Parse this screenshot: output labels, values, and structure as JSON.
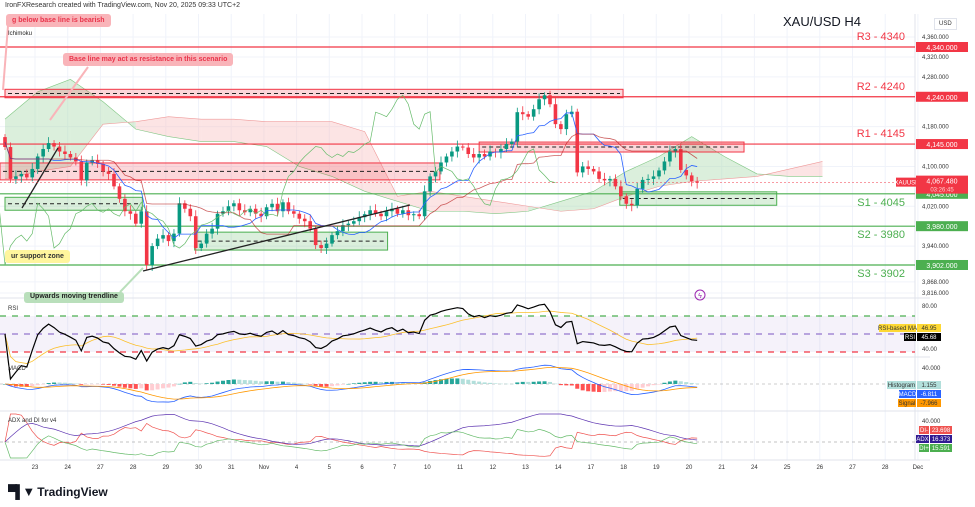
{
  "header": {
    "attribution": "IronFXResearch created with TradingView.com, Nov 20, 2025 09:33 UTC+2",
    "symbol_title": "XAU/USD H4",
    "currency": "USD",
    "indicator": "Ichimoku"
  },
  "annotations": {
    "bearish": "g below base line is bearish",
    "resistance": "Base line may act as resistance in this scenario",
    "support": "ur support zone",
    "trendline": "Upwards moving trendline"
  },
  "footer": {
    "brand": "TradingView"
  },
  "colors": {
    "up": "#089981",
    "down": "#f23645",
    "resistance": "#f23645",
    "support": "#4caf50",
    "tenkan": "#2962ff",
    "kijun": "#b71c1c",
    "cloud_up": "#a5d6a7",
    "cloud_down": "#f8bbbb",
    "rsi": "#000000",
    "rsi_ma": "#fbc02d",
    "macd": "#2962ff",
    "signal": "#ff9800"
  },
  "chart_data": {
    "type": "candlestick",
    "symbol": "XAUUSD",
    "timeframe": "H4",
    "ylim": [
      3816,
      4360
    ],
    "y_ticks": [
      "4,360.000",
      "4,320.000",
      "4,280.000",
      "4,180.000",
      "4,100.000",
      "4,020.000",
      "3,940.000",
      "3,868.000",
      "3,816.000"
    ],
    "y_tick_values": [
      4360,
      4320,
      4280,
      4180,
      4100,
      4020,
      3940,
      3868,
      3816
    ],
    "x_ticks": [
      "23",
      "24",
      "27",
      "28",
      "29",
      "30",
      "31",
      "Nov",
      "4",
      "5",
      "6",
      "7",
      "10",
      "11",
      "12",
      "13",
      "14",
      "17",
      "18",
      "19",
      "20",
      "21",
      "24",
      "25",
      "26",
      "27",
      "28",
      "Dec"
    ],
    "closes": [
      4139,
      4075,
      4080,
      4085,
      4078,
      4095,
      4120,
      4135,
      4147,
      4140,
      4130,
      4125,
      4118,
      4110,
      4072,
      4108,
      4112,
      4105,
      4090,
      4085,
      4060,
      4035,
      4010,
      4005,
      3985,
      4010,
      3902,
      3940,
      3955,
      3962,
      3950,
      3965,
      4026,
      4015,
      4000,
      3936,
      3945,
      3965,
      3975,
      4005,
      4010,
      4020,
      4026,
      4012,
      4008,
      4015,
      4005,
      4000,
      4018,
      4025,
      4010,
      4028,
      4010,
      4005,
      3995,
      3990,
      3975,
      3942,
      3936,
      3945,
      3962,
      3970,
      3982,
      3985,
      3990,
      3998,
      4004,
      4012,
      4005,
      4000,
      4010,
      4015,
      4005,
      4012,
      4002,
      4004,
      4000,
      4050,
      4080,
      4090,
      4108,
      4120,
      4130,
      4140,
      4138,
      4125,
      4118,
      4125,
      4120,
      4130,
      4128,
      4135,
      4145,
      4150,
      4209,
      4205,
      4200,
      4215,
      4235,
      4243,
      4225,
      4185,
      4175,
      4205,
      4210,
      4088,
      4100,
      4095,
      4090,
      4075,
      4072,
      4075,
      4060,
      4040,
      4025,
      4022,
      4055,
      4073,
      4075,
      4080,
      4092,
      4110,
      4130,
      4135,
      4093,
      4082,
      4070,
      4067.48
    ],
    "cloud_daily_span_a": [
      4195,
      4250,
      4275,
      4230,
      4175,
      4160,
      4150,
      4150,
      4140,
      4100,
      4080,
      4050,
      4030,
      4010,
      4010,
      4005,
      4010,
      4030,
      4050,
      4090,
      4120,
      4160,
      4120,
      4085,
      4080,
      4080
    ],
    "cloud_daily_span_b": [
      4075,
      4090,
      4100,
      4185,
      4190,
      4200,
      4195,
      4195,
      4190,
      4190,
      4190,
      4170,
      4040,
      4050,
      4040,
      4030,
      4020,
      4010,
      4015,
      4040,
      4060,
      4070,
      4075,
      4080,
      4095,
      4110
    ],
    "levels": [
      {
        "label": "R3 - 4340",
        "price": 4340,
        "axis": "4,340.000",
        "kind": "resistance"
      },
      {
        "label": "R2 - 4240",
        "price": 4240,
        "axis": "4,240.000",
        "kind": "resistance"
      },
      {
        "label": "R1 - 4145",
        "price": 4145,
        "axis": "4,145.000",
        "kind": "resistance"
      },
      {
        "label": "S1 - 4045",
        "price": 4045,
        "axis": "4,045.000",
        "kind": "support"
      },
      {
        "label": "S2 - 3980",
        "price": 3980,
        "axis": "3,980.000",
        "kind": "support"
      },
      {
        "label": "S3 - 3902",
        "price": 3902,
        "axis": "3,902.000",
        "kind": "support"
      }
    ],
    "zones": [
      {
        "kind": "resistance",
        "from_day": 0,
        "to_day": 18.9,
        "top": 4255,
        "bottom": 4238
      },
      {
        "kind": "resistance",
        "from_day": -0.2,
        "to_day": 13.3,
        "top": 4107,
        "bottom": 4073
      },
      {
        "kind": "resistance",
        "from_day": 14.5,
        "to_day": 22.6,
        "top": 4149,
        "bottom": 4129
      },
      {
        "kind": "support",
        "from_day": 0,
        "to_day": 4.2,
        "top": 4038,
        "bottom": 4012
      },
      {
        "kind": "support",
        "from_day": 5.8,
        "to_day": 11.7,
        "top": 3968,
        "bottom": 3932
      },
      {
        "kind": "support",
        "from_day": 18.8,
        "to_day": 23.6,
        "top": 4049,
        "bottom": 4022
      }
    ],
    "current_price": {
      "label": "XAUUSD",
      "value": "4,067.480",
      "countdown": "03:26:45"
    },
    "rsi": {
      "title": "RSI",
      "levels": [
        70,
        50,
        30
      ],
      "axis": [
        "80.00",
        "40.00"
      ],
      "ma_label": "RSI-based MA",
      "ma_value": "46.95",
      "rsi_label": "RSI",
      "rsi_value": "45.68"
    },
    "macd": {
      "title": "MACD",
      "axis": "40.000",
      "hist_label": "Histogram",
      "hist_value": "1.155",
      "macd_label": "MACD",
      "macd_value": "-6.811",
      "signal_label": "Signal",
      "signal_value": "-7.966"
    },
    "adx": {
      "title": "ADX and DI for v4",
      "axis": "40.000",
      "di_minus_label": "DI-",
      "di_minus_value": "23.698",
      "adx_label": "ADX",
      "adx_value": "16.373",
      "di_plus_label": "DI+",
      "di_plus_value": "15.591"
    }
  }
}
